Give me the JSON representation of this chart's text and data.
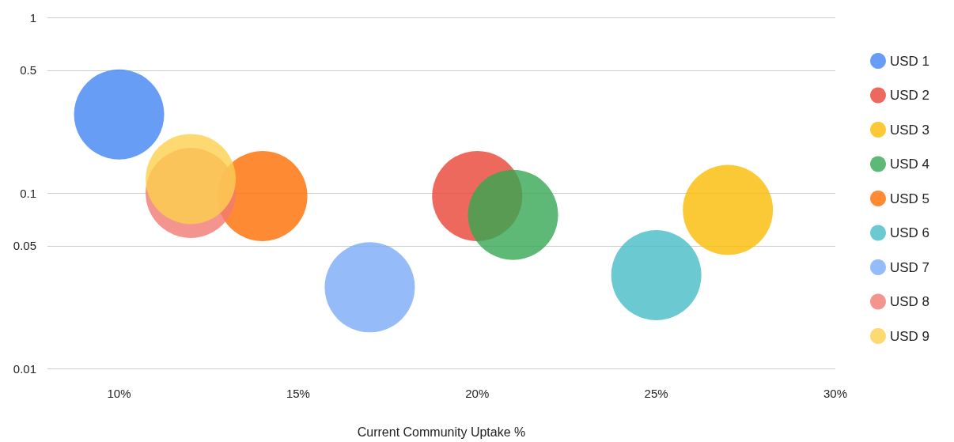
{
  "chart_data": {
    "type": "bubble",
    "xlabel": "Current Community Uptake %",
    "xlim": [
      8,
      30
    ],
    "xticks": [
      {
        "value": 10,
        "label": "10%"
      },
      {
        "value": 15,
        "label": "15%"
      },
      {
        "value": 20,
        "label": "20%"
      },
      {
        "value": 25,
        "label": "25%"
      },
      {
        "value": 30,
        "label": "30%"
      }
    ],
    "ylim": [
      0.01,
      1
    ],
    "yticks": [
      0.01,
      0.05,
      0.1,
      0.5,
      1
    ],
    "log": "y",
    "grid": "y",
    "legend": "right",
    "series": [
      {
        "name": "USD 1",
        "color": "#4285f4",
        "x": [
          10
        ],
        "values": [
          0.28
        ],
        "sizes": [
          1
        ]
      },
      {
        "name": "USD 2",
        "color": "#ea4335",
        "x": [
          20
        ],
        "values": [
          0.096
        ],
        "sizes": [
          1
        ]
      },
      {
        "name": "USD 3",
        "color": "#fbbc04",
        "x": [
          27
        ],
        "values": [
          0.08
        ],
        "sizes": [
          1
        ]
      },
      {
        "name": "USD 4",
        "color": "#34a853",
        "x": [
          21
        ],
        "values": [
          0.075
        ],
        "sizes": [
          1
        ]
      },
      {
        "name": "USD 5",
        "color": "#ff6d01",
        "x": [
          14
        ],
        "values": [
          0.096
        ],
        "sizes": [
          1
        ]
      },
      {
        "name": "USD 6",
        "color": "#46bdc6",
        "x": [
          25
        ],
        "values": [
          0.034
        ],
        "sizes": [
          1
        ]
      },
      {
        "name": "USD 7",
        "color": "#7baaf7",
        "x": [
          17
        ],
        "values": [
          0.029
        ],
        "sizes": [
          1
        ]
      },
      {
        "name": "USD 8",
        "color": "#f07b72",
        "x": [
          12
        ],
        "values": [
          0.1
        ],
        "sizes": [
          1
        ]
      },
      {
        "name": "USD 9",
        "color": "#fcd04f",
        "x": [
          12
        ],
        "values": [
          0.12
        ],
        "sizes": [
          1
        ]
      }
    ]
  }
}
